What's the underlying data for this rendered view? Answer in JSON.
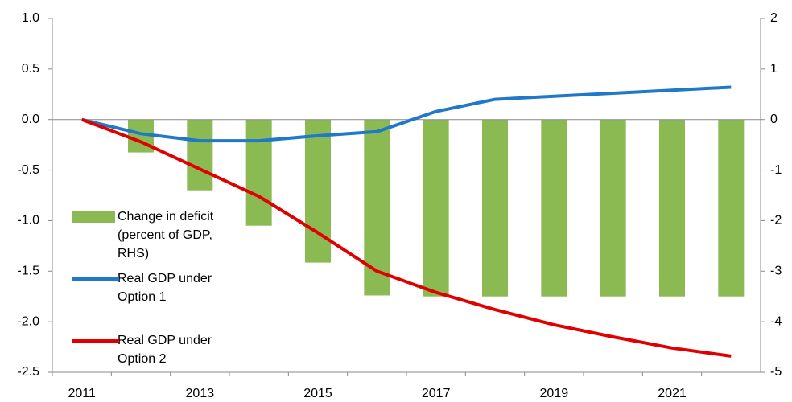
{
  "chart_data": {
    "type": "combo",
    "categories": [
      "2011",
      null,
      "2013",
      null,
      "2015",
      null,
      "2017",
      null,
      "2019",
      null,
      "2021",
      null
    ],
    "ylim": [
      -2.5,
      1.0
    ],
    "yticks": [
      {
        "value": 1.0,
        "label": "1.0"
      },
      0.5,
      {
        "value": 0,
        "label": "0.0"
      },
      -0.5,
      {
        "value": -1.0,
        "label": "-1.0"
      },
      -1.5,
      {
        "value": -2.0,
        "label": "-2.0"
      },
      -2.5
    ],
    "y2lim": [
      -5,
      2
    ],
    "y2ticks": [
      2,
      1,
      0,
      -1,
      -2,
      -3,
      -4,
      -5
    ],
    "series": [
      {
        "name": "Change in deficit (percent of GDP, RHS)",
        "type": "bar",
        "axis": "y2",
        "color": "#8cba52",
        "values": [
          0,
          -0.65,
          -1.4,
          -2.1,
          -2.83,
          -3.48,
          -3.5,
          -3.5,
          -3.5,
          -3.5,
          -3.5,
          -3.5
        ]
      },
      {
        "name": "Real GDP under Option 1",
        "type": "line",
        "color": "#1f78c8",
        "values": [
          0,
          -0.14,
          -0.21,
          -0.21,
          -0.16,
          -0.12,
          0.08,
          0.2,
          0.23,
          0.26,
          0.29,
          0.32
        ]
      },
      {
        "name": "Real GDP under Option 2",
        "type": "line",
        "color": "#e00000",
        "values": [
          0,
          -0.22,
          -0.49,
          -0.76,
          -1.12,
          -1.5,
          -1.71,
          -1.88,
          -2.03,
          -2.15,
          -2.26,
          -2.34
        ]
      }
    ]
  }
}
